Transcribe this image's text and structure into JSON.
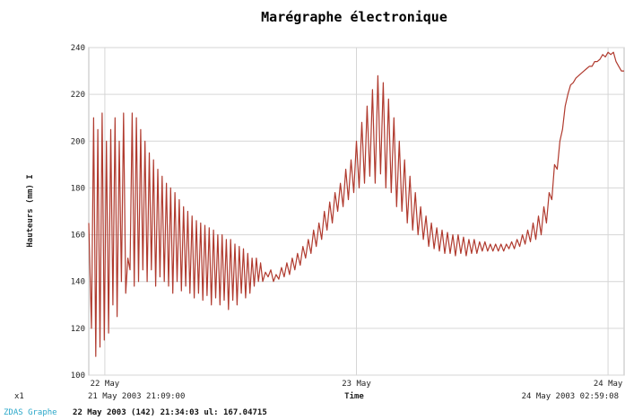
{
  "chart_data": {
    "type": "line",
    "title": "Marégraphe électronique",
    "xlabel": "Time",
    "ylabel": "Hauteurs (mm) I",
    "ylim": [
      100,
      240
    ],
    "yticks": [
      100,
      120,
      140,
      160,
      180,
      200,
      220,
      240
    ],
    "xlim": [
      0,
      100
    ],
    "xticks": [
      {
        "x": 3,
        "label": "22 May"
      },
      {
        "x": 50,
        "label": "23 May"
      },
      {
        "x": 97,
        "label": "24 May"
      }
    ],
    "x_range_start": "21 May 2003 21:09:00",
    "x_range_end": "24 May 2003 02:59:08",
    "x_marker": "x1",
    "grid": true,
    "line_color": "#b03a2e",
    "series": [
      {
        "values": [
          [
            0,
            165
          ],
          [
            0.5,
            120
          ],
          [
            0.9,
            210
          ],
          [
            1.3,
            108
          ],
          [
            1.7,
            205
          ],
          [
            2.1,
            112
          ],
          [
            2.5,
            212
          ],
          [
            2.9,
            115
          ],
          [
            3.3,
            200
          ],
          [
            3.7,
            118
          ],
          [
            4.1,
            205
          ],
          [
            4.5,
            130
          ],
          [
            4.9,
            210
          ],
          [
            5.3,
            125
          ],
          [
            5.7,
            200
          ],
          [
            6.1,
            140
          ],
          [
            6.5,
            212
          ],
          [
            6.9,
            135
          ],
          [
            7.3,
            150
          ],
          [
            7.7,
            145
          ],
          [
            8.1,
            212
          ],
          [
            8.5,
            138
          ],
          [
            8.9,
            210
          ],
          [
            9.3,
            140
          ],
          [
            9.7,
            205
          ],
          [
            10.1,
            145
          ],
          [
            10.5,
            200
          ],
          [
            10.9,
            140
          ],
          [
            11.3,
            195
          ],
          [
            11.7,
            145
          ],
          [
            12.1,
            192
          ],
          [
            12.5,
            138
          ],
          [
            12.9,
            188
          ],
          [
            13.3,
            142
          ],
          [
            13.7,
            185
          ],
          [
            14.1,
            140
          ],
          [
            14.5,
            182
          ],
          [
            14.9,
            138
          ],
          [
            15.3,
            180
          ],
          [
            15.7,
            135
          ],
          [
            16.1,
            178
          ],
          [
            16.5,
            140
          ],
          [
            16.9,
            175
          ],
          [
            17.3,
            136
          ],
          [
            17.7,
            172
          ],
          [
            18.1,
            138
          ],
          [
            18.5,
            170
          ],
          [
            18.9,
            135
          ],
          [
            19.3,
            168
          ],
          [
            19.7,
            133
          ],
          [
            20.1,
            166
          ],
          [
            20.5,
            135
          ],
          [
            20.9,
            165
          ],
          [
            21.3,
            132
          ],
          [
            21.7,
            164
          ],
          [
            22.1,
            134
          ],
          [
            22.5,
            163
          ],
          [
            22.9,
            130
          ],
          [
            23.3,
            162
          ],
          [
            23.7,
            133
          ],
          [
            24.1,
            160
          ],
          [
            24.5,
            130
          ],
          [
            24.9,
            160
          ],
          [
            25.3,
            132
          ],
          [
            25.7,
            158
          ],
          [
            26.1,
            128
          ],
          [
            26.5,
            158
          ],
          [
            26.9,
            132
          ],
          [
            27.3,
            156
          ],
          [
            27.7,
            130
          ],
          [
            28.1,
            155
          ],
          [
            28.5,
            135
          ],
          [
            28.9,
            154
          ],
          [
            29.3,
            133
          ],
          [
            29.7,
            152
          ],
          [
            30.1,
            135
          ],
          [
            30.5,
            150
          ],
          [
            30.9,
            138
          ],
          [
            31.3,
            150
          ],
          [
            31.7,
            140
          ],
          [
            32.1,
            148
          ],
          [
            32.5,
            140
          ],
          [
            33.0,
            144
          ],
          [
            33.5,
            142
          ],
          [
            34.0,
            145
          ],
          [
            34.5,
            140
          ],
          [
            35.0,
            143
          ],
          [
            35.5,
            141
          ],
          [
            36.0,
            146
          ],
          [
            36.5,
            142
          ],
          [
            37.0,
            148
          ],
          [
            37.5,
            143
          ],
          [
            38.0,
            150
          ],
          [
            38.5,
            145
          ],
          [
            39.0,
            152
          ],
          [
            39.5,
            147
          ],
          [
            40.0,
            155
          ],
          [
            40.5,
            150
          ],
          [
            41.0,
            158
          ],
          [
            41.5,
            152
          ],
          [
            42.0,
            162
          ],
          [
            42.5,
            155
          ],
          [
            43.0,
            165
          ],
          [
            43.5,
            158
          ],
          [
            44.0,
            170
          ],
          [
            44.5,
            162
          ],
          [
            45.0,
            174
          ],
          [
            45.5,
            165
          ],
          [
            46.0,
            178
          ],
          [
            46.5,
            170
          ],
          [
            47.0,
            182
          ],
          [
            47.5,
            172
          ],
          [
            48.0,
            188
          ],
          [
            48.5,
            175
          ],
          [
            49.0,
            192
          ],
          [
            49.5,
            178
          ],
          [
            50.0,
            200
          ],
          [
            50.5,
            180
          ],
          [
            51.0,
            208
          ],
          [
            51.5,
            182
          ],
          [
            52.0,
            215
          ],
          [
            52.5,
            185
          ],
          [
            53.0,
            222
          ],
          [
            53.5,
            182
          ],
          [
            54.0,
            228
          ],
          [
            54.5,
            186
          ],
          [
            55.0,
            225
          ],
          [
            55.5,
            180
          ],
          [
            56.0,
            218
          ],
          [
            56.5,
            178
          ],
          [
            57.0,
            210
          ],
          [
            57.5,
            172
          ],
          [
            58.0,
            200
          ],
          [
            58.5,
            170
          ],
          [
            59.0,
            192
          ],
          [
            59.5,
            165
          ],
          [
            60.0,
            185
          ],
          [
            60.5,
            162
          ],
          [
            61.0,
            178
          ],
          [
            61.5,
            160
          ],
          [
            62.0,
            172
          ],
          [
            62.5,
            158
          ],
          [
            63.0,
            168
          ],
          [
            63.5,
            155
          ],
          [
            64.0,
            165
          ],
          [
            64.5,
            154
          ],
          [
            65.0,
            163
          ],
          [
            65.5,
            153
          ],
          [
            66.0,
            162
          ],
          [
            66.5,
            152
          ],
          [
            67.0,
            161
          ],
          [
            67.5,
            152
          ],
          [
            68.0,
            160
          ],
          [
            68.5,
            151
          ],
          [
            69.0,
            160
          ],
          [
            69.5,
            152
          ],
          [
            70.0,
            159
          ],
          [
            70.5,
            151
          ],
          [
            71.0,
            158
          ],
          [
            71.5,
            152
          ],
          [
            72.0,
            158
          ],
          [
            72.5,
            152
          ],
          [
            73.0,
            157
          ],
          [
            73.5,
            153
          ],
          [
            74.0,
            157
          ],
          [
            74.5,
            153
          ],
          [
            75.0,
            156
          ],
          [
            75.5,
            153
          ],
          [
            76.0,
            156
          ],
          [
            76.5,
            153
          ],
          [
            77.0,
            156
          ],
          [
            77.5,
            153
          ],
          [
            78.0,
            156
          ],
          [
            78.5,
            154
          ],
          [
            79.0,
            157
          ],
          [
            79.5,
            154
          ],
          [
            80.0,
            158
          ],
          [
            80.5,
            155
          ],
          [
            81.0,
            160
          ],
          [
            81.5,
            156
          ],
          [
            82.0,
            162
          ],
          [
            82.5,
            157
          ],
          [
            83.0,
            165
          ],
          [
            83.5,
            158
          ],
          [
            84.0,
            168
          ],
          [
            84.5,
            160
          ],
          [
            85.0,
            172
          ],
          [
            85.5,
            165
          ],
          [
            86.0,
            178
          ],
          [
            86.5,
            175
          ],
          [
            87.0,
            190
          ],
          [
            87.5,
            188
          ],
          [
            88.0,
            200
          ],
          [
            88.5,
            205
          ],
          [
            89.0,
            215
          ],
          [
            89.5,
            220
          ],
          [
            90.0,
            224
          ],
          [
            90.5,
            225
          ],
          [
            91.0,
            227
          ],
          [
            91.5,
            228
          ],
          [
            92.0,
            229
          ],
          [
            92.5,
            230
          ],
          [
            93.0,
            231
          ],
          [
            93.5,
            232
          ],
          [
            94.0,
            232
          ],
          [
            94.5,
            234
          ],
          [
            95.0,
            234
          ],
          [
            95.5,
            235
          ],
          [
            96.0,
            237
          ],
          [
            96.5,
            236
          ],
          [
            97.0,
            238
          ],
          [
            97.5,
            237
          ],
          [
            98.0,
            238
          ],
          [
            98.5,
            234
          ],
          [
            99.0,
            232
          ],
          [
            99.5,
            230
          ],
          [
            100,
            230
          ]
        ]
      }
    ]
  },
  "status": {
    "app": "ZDAS Graphe",
    "text": "22 May 2003 (142) 21:34:03 ul: 167.04715"
  }
}
